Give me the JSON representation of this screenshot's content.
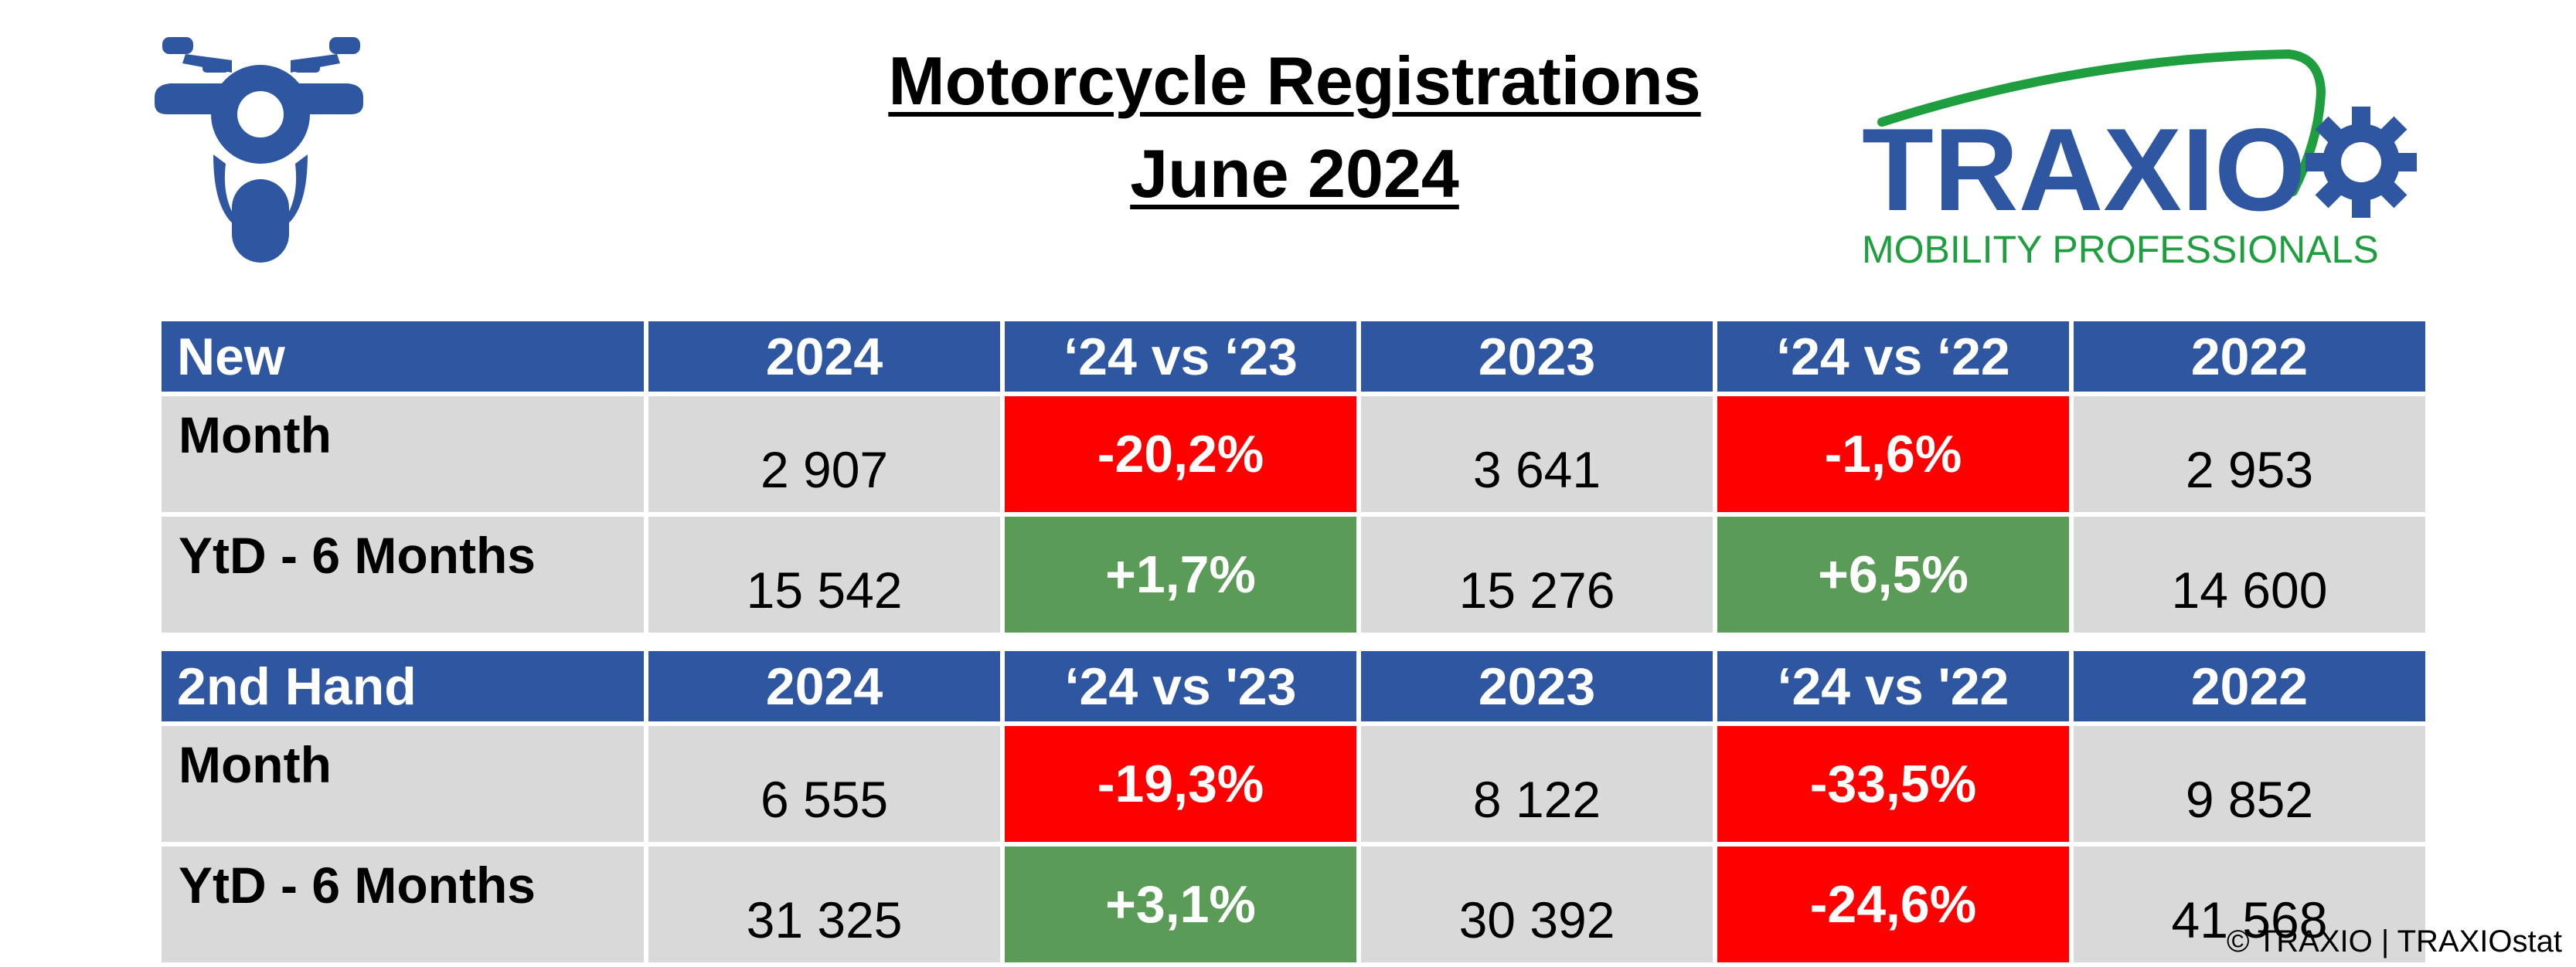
{
  "title": {
    "line1": "Motorcycle Registrations",
    "line2": "June 2024"
  },
  "icons": {
    "left": "motorcycle-icon",
    "logo": "traxio-logo"
  },
  "logo": {
    "wordmark": "TRAXIO",
    "tagline": "MOBILITY PROFESSIONALS",
    "colors": {
      "blue": "#2F57A1",
      "green": "#1E9E3E"
    }
  },
  "colors": {
    "header_bg": "#2F57A1",
    "cell_bg": "#D9D9D9",
    "negative": "#FF0000",
    "positive": "#5B9B58"
  },
  "tables": [
    {
      "headers": [
        "New",
        "2024",
        "‘24 vs ‘23",
        "2023",
        "‘24 vs ‘22",
        "2022"
      ],
      "rows": [
        {
          "label": "Month",
          "cells": [
            "2 907",
            "-20,2%",
            "3 641",
            "-1,6%",
            "2 953"
          ]
        },
        {
          "label": "YtD - 6 Months",
          "cells": [
            "15 542",
            "+1,7%",
            "15 276",
            "+6,5%",
            "14 600"
          ]
        }
      ]
    },
    {
      "headers": [
        "2nd Hand",
        "2024",
        "‘24 vs '23",
        "2023",
        "‘24 vs '22",
        "2022"
      ],
      "rows": [
        {
          "label": "Month",
          "cells": [
            "6 555",
            "-19,3%",
            "8 122",
            "-33,5%",
            "9 852"
          ]
        },
        {
          "label": "YtD - 6 Months",
          "cells": [
            "31 325",
            "+3,1%",
            "30 392",
            "-24,6%",
            "41 568"
          ]
        }
      ]
    }
  ],
  "copyright": "© TRAXIO | TRAXIOstat"
}
